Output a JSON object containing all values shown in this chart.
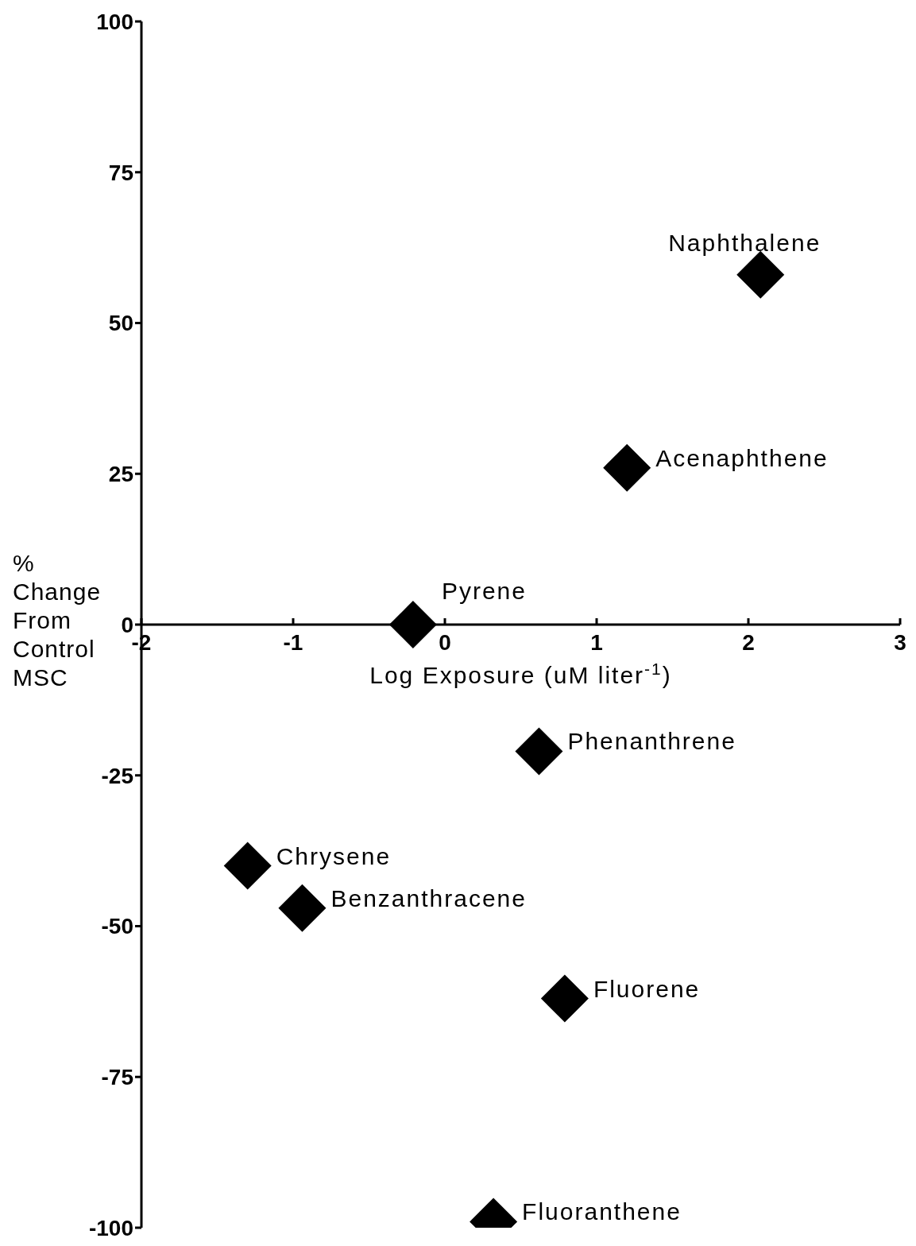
{
  "chart_data": {
    "type": "scatter",
    "xlabel": "Log Exposure (uM liter$^{-1}$)",
    "ylabel": "% Change From Control MSC",
    "x": [
      2.08,
      1.2,
      -0.21,
      0.62,
      -1.3,
      -0.94,
      0.79,
      0.32
    ],
    "series": [
      {
        "color": "#000000",
        "values": [
          58,
          26,
          0,
          -21,
          -40,
          -47,
          -62,
          -99
        ]
      }
    ],
    "marker": "diamond",
    "annotations": [
      {
        "text": "Naphthalene",
        "x": 2.08,
        "y": 58
      },
      {
        "text": "Acenaphthene",
        "x": 1.2,
        "y": 26
      },
      {
        "text": "Pyrene",
        "x": -0.21,
        "y": 0
      },
      {
        "text": "Phenanthrene",
        "x": 0.62,
        "y": -21
      },
      {
        "text": "Chrysene",
        "x": -1.3,
        "y": -40
      },
      {
        "text": "Benzanthracene",
        "x": -0.94,
        "y": -47
      },
      {
        "text": "Fluorene",
        "x": 0.79,
        "y": -62
      },
      {
        "text": "Fluoranthene",
        "x": 0.32,
        "y": -99
      }
    ],
    "xlim": [
      -2,
      3
    ],
    "xticks": [
      -2,
      -1,
      0,
      1,
      2,
      3
    ],
    "ylim": [
      -100,
      100
    ],
    "yticks": [
      -100,
      -75,
      -50,
      -25,
      0,
      25,
      50,
      75,
      100
    ]
  }
}
